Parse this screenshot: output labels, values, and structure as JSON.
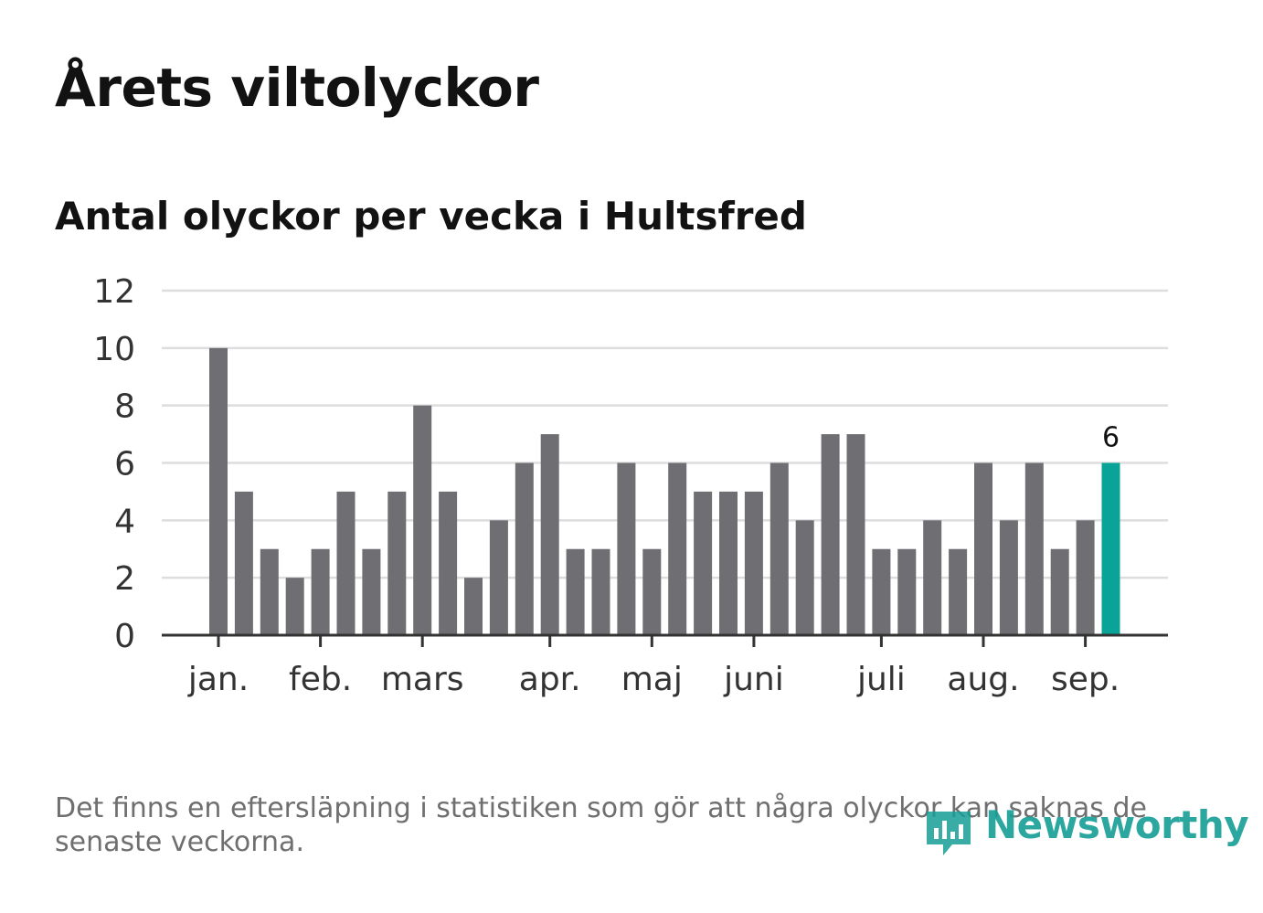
{
  "header": {
    "title": "Årets viltolyckor",
    "subtitle": "Antal olyckor per vecka i Hultsfred"
  },
  "footer": {
    "note": "Det finns en eftersläpning i statistiken som gör att några olyckor kan saknas de senaste veckorna.",
    "brand": "Newsworthy"
  },
  "colors": {
    "bar": "#6f6e73",
    "highlight": "#0aa398",
    "grid": "#dddddd",
    "axis": "#333333",
    "brand": "#159e95"
  },
  "chart_data": {
    "type": "bar",
    "title": "",
    "xlabel": "",
    "ylabel": "",
    "ylim": [
      0,
      12
    ],
    "yticks": [
      0,
      2,
      4,
      6,
      8,
      10,
      12
    ],
    "grid": true,
    "values": [
      10,
      5,
      3,
      2,
      3,
      5,
      3,
      5,
      8,
      5,
      2,
      4,
      6,
      7,
      3,
      3,
      6,
      3,
      6,
      5,
      5,
      5,
      6,
      4,
      7,
      7,
      3,
      3,
      4,
      3,
      6,
      4,
      6,
      3,
      4,
      6
    ],
    "highlight_index": 35,
    "highlight_label": "6",
    "month_labels": [
      {
        "label": "jan.",
        "bar_index": 0
      },
      {
        "label": "feb.",
        "bar_index": 4
      },
      {
        "label": "mars",
        "bar_index": 8
      },
      {
        "label": "apr.",
        "bar_index": 13
      },
      {
        "label": "maj",
        "bar_index": 17
      },
      {
        "label": "juni",
        "bar_index": 21
      },
      {
        "label": "juli",
        "bar_index": 26
      },
      {
        "label": "aug.",
        "bar_index": 30
      },
      {
        "label": "sep.",
        "bar_index": 34
      }
    ]
  }
}
